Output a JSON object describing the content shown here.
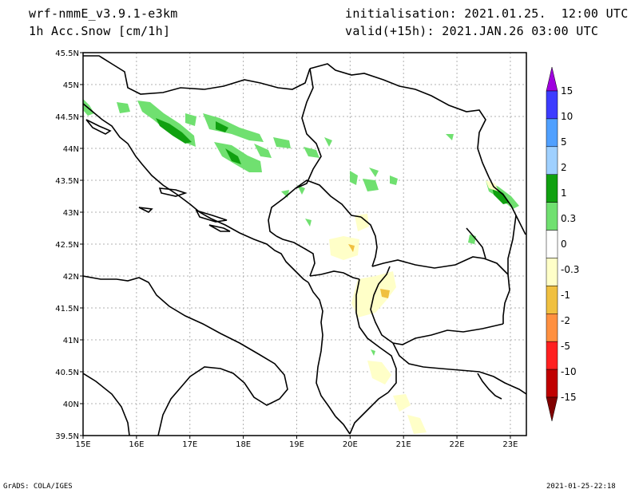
{
  "header": {
    "model": "wrf-nmmE_v3.9.1-e3km",
    "field": "1h Acc.Snow [cm/1h]",
    "initialisation": "initialisation: 2021.01.25.  12:00 UTC",
    "valid": "valid(+15h): 2021.JAN.26 03:00 UTC"
  },
  "footer": {
    "credit": "GrADS: COLA/IGES",
    "timestamp": "2021-01-25-22:18"
  },
  "map": {
    "lon_range": [
      15,
      23.3
    ],
    "lat_range": [
      39.5,
      45.5
    ],
    "lon_ticks": [
      "15E",
      "16E",
      "17E",
      "18E",
      "19E",
      "20E",
      "21E",
      "22E",
      "23E"
    ],
    "lat_ticks": [
      "39.5N",
      "40N",
      "40.5N",
      "41N",
      "41.5N",
      "42N",
      "42.5N",
      "43N",
      "43.5N",
      "44N",
      "44.5N",
      "45N",
      "45.5N"
    ],
    "grid": true
  },
  "colorbar": {
    "levels": [
      "15",
      "10",
      "5",
      "2",
      "1",
      "0.3",
      "0",
      "-0.3",
      "-1",
      "-2",
      "-5",
      "-10",
      "-15"
    ],
    "colors": [
      "#9f00df",
      "#3c3cff",
      "#50a0ff",
      "#9fd0ff",
      "#10a010",
      "#70e070",
      "#ffffff",
      "#ffffc8",
      "#f0c040",
      "#ff9040",
      "#ff2020",
      "#c00000",
      "#800000"
    ]
  }
}
